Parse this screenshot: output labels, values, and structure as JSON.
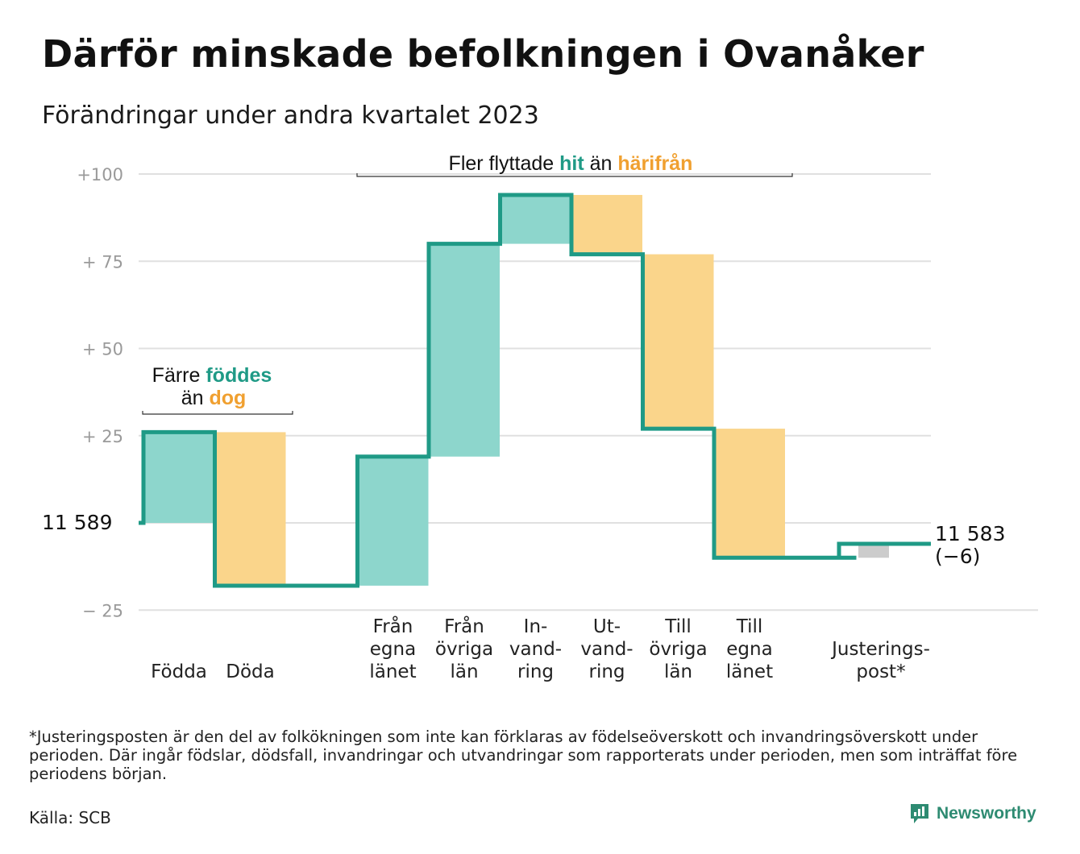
{
  "title": "Därför minskade befolkningen i Ovanåker",
  "subtitle": "Förändringar under andra kvartalet 2023",
  "footnote": "*Justeringsposten är den del av folkökningen som inte kan förklaras av födelseöverskott och invandringsöverskott under perioden. Där ingår födslar, dödsfall, invandringar och utvandringar som rapporterats under perioden, men som inträffat före periodens början.",
  "source": "Källa: SCB",
  "brand": "Newsworthy",
  "colors": {
    "increase": "#8dd6cc",
    "decrease": "#fad58b",
    "adjustment": "#cccccc",
    "line": "#1f9a86",
    "grid": "#e0e0e0",
    "accent_green": "#1f9a86",
    "accent_orange": "#f0a030"
  },
  "annotations": {
    "births_deaths": {
      "line1_prefix": "Färre ",
      "line1_highlight": "föddes",
      "line2_prefix": "än ",
      "line2_highlight": "dog"
    },
    "migration": {
      "prefix": "Fler flyttade ",
      "highlight1": "hit",
      "middle": " än ",
      "highlight2": "härifrån"
    }
  },
  "chart_data": {
    "type": "waterfall",
    "start_label": "11  589",
    "start_value": 11589,
    "end_label": "11 583",
    "end_change_label": "(−6)",
    "end_value": 11583,
    "ylim": [
      -25,
      100
    ],
    "y_ticks": [
      {
        "value": 100,
        "label": "+100"
      },
      {
        "value": 75,
        "label": "+  75"
      },
      {
        "value": 50,
        "label": "+  50"
      },
      {
        "value": 25,
        "label": "+  25"
      },
      {
        "value": 0,
        "label": ""
      },
      {
        "value": -25,
        "label": "−  25"
      }
    ],
    "steps": [
      {
        "label_lines": [
          "Födda"
        ],
        "value": 26,
        "kind": "increase"
      },
      {
        "label_lines": [
          "Döda"
        ],
        "value": -44,
        "kind": "decrease"
      },
      {
        "label_lines": [],
        "value": 0,
        "kind": "gap"
      },
      {
        "label_lines": [
          "Från",
          "egna",
          "länet"
        ],
        "value": 37,
        "kind": "increase"
      },
      {
        "label_lines": [
          "Från",
          "övriga",
          "län"
        ],
        "value": 61,
        "kind": "increase"
      },
      {
        "label_lines": [
          "In-",
          "vand-",
          "ring"
        ],
        "value": 14,
        "kind": "increase"
      },
      {
        "label_lines": [
          "Ut-",
          "vand-",
          "ring"
        ],
        "value": -17,
        "kind": "decrease"
      },
      {
        "label_lines": [
          "Till",
          "övriga",
          "län"
        ],
        "value": -50,
        "kind": "decrease"
      },
      {
        "label_lines": [
          "Till",
          "egna",
          "länet"
        ],
        "value": -37,
        "kind": "decrease"
      },
      {
        "label_lines": [],
        "value": 0,
        "kind": "gap"
      },
      {
        "label_lines": [
          "Justerings-",
          "post*"
        ],
        "value": 4,
        "kind": "adjustment"
      }
    ]
  }
}
